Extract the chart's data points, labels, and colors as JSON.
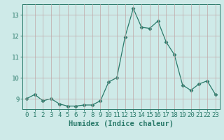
{
  "x": [
    0,
    1,
    2,
    3,
    4,
    5,
    6,
    7,
    8,
    9,
    10,
    11,
    12,
    13,
    14,
    15,
    16,
    17,
    18,
    19,
    20,
    21,
    22,
    23
  ],
  "y": [
    9.0,
    9.2,
    8.9,
    9.0,
    8.75,
    8.65,
    8.65,
    8.7,
    8.7,
    8.9,
    9.8,
    10.0,
    11.95,
    13.3,
    12.4,
    12.35,
    12.7,
    11.7,
    11.1,
    9.65,
    9.4,
    9.7,
    9.85,
    9.2
  ],
  "line_color": "#2a7a6a",
  "marker": "D",
  "marker_size": 2.5,
  "xlabel": "Humidex (Indice chaleur)",
  "ylim": [
    8.5,
    13.5
  ],
  "xlim": [
    -0.5,
    23.5
  ],
  "yticks": [
    9,
    10,
    11,
    12,
    13
  ],
  "xticks": [
    0,
    1,
    2,
    3,
    4,
    5,
    6,
    7,
    8,
    9,
    10,
    11,
    12,
    13,
    14,
    15,
    16,
    17,
    18,
    19,
    20,
    21,
    22,
    23
  ],
  "bg_color": "#ceeae8",
  "grid_color": "#c0a8a8",
  "spine_color": "#2a7a6a",
  "text_color": "#2a7a6a",
  "xlabel_fontsize": 7.5,
  "tick_fontsize": 6.5
}
